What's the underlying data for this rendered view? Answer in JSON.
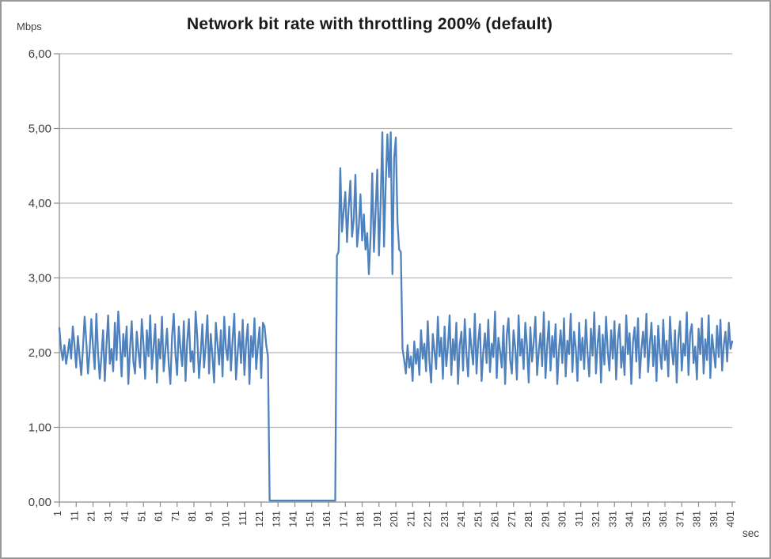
{
  "window": {
    "border_color": "#9a9a9a",
    "background": "#ffffff"
  },
  "chart": {
    "title": "Network bit rate with throttling 200% (default)",
    "y_unit_label": "Mbps",
    "x_unit_label": "sec",
    "accent_color": "#4F81BD",
    "gridline_color": "#b5b5b5",
    "axis_color": "#8c8c8c",
    "text_color": "#3f3f3f"
  },
  "chart_data": {
    "type": "line",
    "title": "Network bit rate with throttling 200% (default)",
    "xlabel": "sec",
    "ylabel": "Mbps",
    "ylim": [
      0,
      6
    ],
    "xlim": [
      1,
      401
    ],
    "grid": "horizontal",
    "legend_position": "none",
    "y_ticks": [
      "0,00",
      "1,00",
      "2,00",
      "3,00",
      "4,00",
      "5,00",
      "6,00"
    ],
    "x_tick_step": 10,
    "x_ticks": [
      "1",
      "11",
      "21",
      "31",
      "41",
      "51",
      "61",
      "71",
      "81",
      "91",
      "101",
      "111",
      "121",
      "131",
      "141",
      "151",
      "161",
      "171",
      "181",
      "191",
      "201",
      "211",
      "221",
      "231",
      "241",
      "251",
      "261",
      "271",
      "281",
      "291",
      "301",
      "311",
      "321",
      "331",
      "341",
      "351",
      "361",
      "371",
      "381",
      "391",
      "401"
    ],
    "series": [
      {
        "name": "Network bit rate",
        "color": "#4F81BD",
        "x_start": 1,
        "values": [
          2.33,
          2.05,
          1.9,
          2.1,
          1.85,
          2.0,
          2.18,
          1.92,
          2.35,
          2.1,
          1.8,
          2.22,
          1.95,
          1.7,
          2.05,
          2.48,
          2.15,
          1.72,
          2.02,
          2.45,
          2.08,
          1.78,
          2.52,
          2.0,
          1.65,
          1.95,
          2.3,
          1.62,
          2.1,
          2.5,
          1.85,
          2.05,
          1.75,
          2.4,
          1.9,
          2.55,
          2.15,
          1.68,
          2.25,
          1.95,
          2.35,
          1.58,
          2.05,
          2.42,
          1.88,
          1.72,
          2.28,
          2.02,
          1.8,
          2.45,
          2.12,
          1.65,
          2.3,
          1.95,
          2.5,
          1.78,
          2.08,
          2.38,
          1.6,
          2.18,
          1.92,
          2.48,
          1.75,
          2.02,
          2.32,
          1.85,
          1.58,
          2.22,
          2.52,
          1.98,
          1.7,
          2.35,
          2.05,
          1.82,
          2.42,
          1.62,
          2.15,
          2.45,
          1.88,
          2.02,
          1.74,
          2.55,
          2.2,
          1.66,
          1.98,
          2.38,
          1.8,
          2.1,
          2.5,
          1.72,
          2.25,
          1.95,
          1.6,
          2.4,
          2.12,
          1.84,
          2.3,
          1.68,
          2.48,
          2.06,
          1.9,
          2.35,
          1.76,
          2.18,
          2.52,
          1.64,
          2.0,
          2.28,
          1.86,
          2.44,
          1.7,
          2.12,
          2.38,
          1.58,
          2.22,
          1.94,
          2.46,
          1.78,
          2.08,
          2.34,
          1.66,
          2.4,
          2.35,
          2.1,
          1.95,
          0.02,
          0.02,
          0.02,
          0.02,
          0.02,
          0.02,
          0.02,
          0.02,
          0.02,
          0.02,
          0.02,
          0.02,
          0.02,
          0.02,
          0.02,
          0.02,
          0.02,
          0.02,
          0.02,
          0.02,
          0.02,
          0.02,
          0.02,
          0.02,
          0.02,
          0.02,
          0.02,
          0.02,
          0.02,
          0.02,
          0.02,
          0.02,
          0.02,
          0.02,
          0.02,
          0.02,
          0.02,
          0.02,
          0.02,
          0.02,
          3.3,
          3.35,
          4.47,
          3.62,
          3.9,
          4.15,
          3.48,
          3.95,
          4.3,
          3.55,
          3.78,
          4.38,
          3.42,
          3.68,
          4.12,
          3.5,
          3.85,
          3.38,
          3.6,
          3.05,
          3.55,
          4.4,
          3.35,
          3.9,
          4.45,
          3.3,
          4.0,
          4.95,
          3.42,
          4.25,
          4.92,
          4.35,
          4.95,
          3.05,
          4.6,
          4.88,
          3.75,
          3.38,
          3.35,
          2.05,
          1.9,
          1.72,
          2.1,
          1.8,
          1.95,
          1.62,
          2.15,
          1.85,
          2.05,
          1.7,
          2.3,
          1.92,
          2.12,
          1.75,
          2.42,
          1.88,
          1.6,
          2.25,
          2.02,
          1.78,
          2.48,
          1.95,
          2.2,
          1.65,
          2.35,
          1.82,
          2.08,
          2.5,
          1.7,
          2.18,
          1.9,
          2.4,
          1.58,
          2.1,
          2.28,
          1.76,
          2.45,
          1.98,
          1.68,
          2.32,
          2.05,
          1.84,
          2.52,
          1.72,
          2.15,
          2.38,
          1.62,
          2.0,
          2.26,
          1.86,
          2.44,
          1.74,
          2.12,
          1.94,
          2.55,
          1.66,
          2.2,
          2.02,
          1.8,
          2.36,
          1.58,
          2.24,
          2.46,
          1.9,
          1.72,
          2.3,
          2.06,
          1.64,
          2.5,
          1.96,
          2.18,
          1.78,
          2.4,
          2.08,
          1.6,
          2.34,
          1.88,
          2.14,
          2.48,
          1.7,
          2.02,
          2.26,
          1.82,
          2.54,
          1.66,
          2.1,
          2.42,
          1.76,
          2.22,
          1.94,
          2.38,
          1.58,
          2.04,
          2.3,
          1.86,
          2.46,
          1.68,
          2.16,
          1.98,
          2.52,
          1.74,
          2.28,
          2.06,
          1.62,
          2.4,
          1.9,
          2.2,
          1.78,
          2.44,
          2.0,
          1.68,
          2.32,
          1.96,
          2.54,
          1.72,
          2.12,
          2.36,
          1.6,
          2.24,
          1.84,
          2.48,
          2.02,
          1.76,
          2.3,
          1.92,
          2.42,
          1.64,
          2.18,
          2.38,
          1.8,
          2.08,
          1.7,
          2.5,
          1.98,
          2.26,
          1.58,
          2.14,
          2.34,
          1.88,
          2.46,
          1.66,
          2.04,
          2.28,
          1.94,
          2.52,
          1.74,
          2.1,
          2.4,
          1.82,
          2.22,
          1.62,
          2.36,
          2.0,
          1.78,
          2.44,
          1.9,
          2.16,
          1.68,
          2.48,
          2.06,
          1.84,
          2.3,
          1.6,
          2.2,
          2.42,
          1.76,
          2.12,
          1.96,
          2.54,
          1.7,
          2.26,
          2.38,
          1.86,
          2.08,
          1.64,
          2.32,
          1.98,
          2.46,
          1.72,
          2.18,
          1.9,
          2.5,
          1.66,
          2.24,
          2.02,
          1.8,
          2.36,
          1.94,
          2.44,
          1.76,
          2.1,
          2.28,
          1.88,
          2.4,
          2.05,
          2.15
        ]
      }
    ]
  }
}
